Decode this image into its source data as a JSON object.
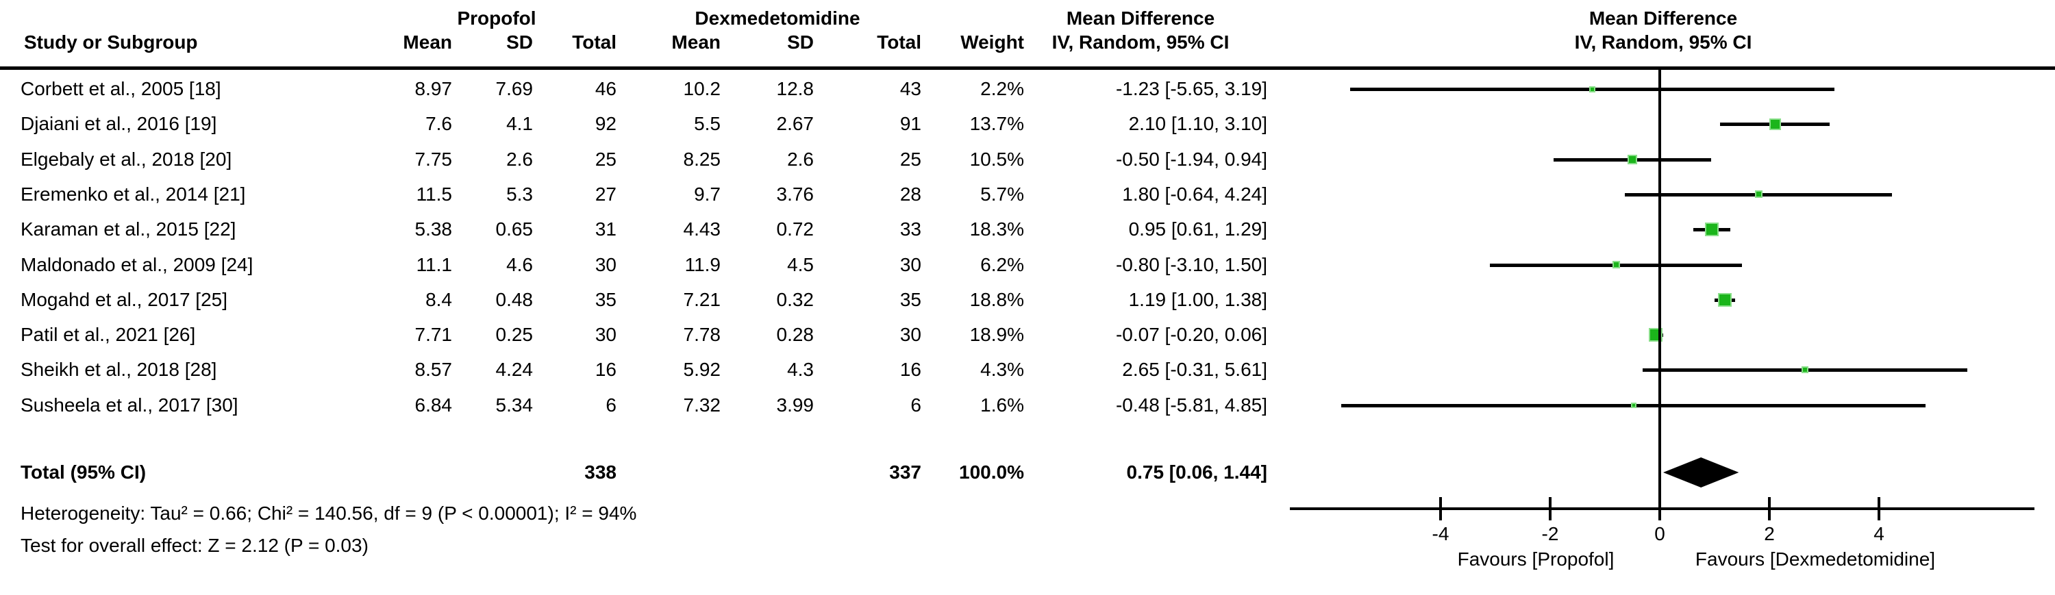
{
  "header": {
    "col_study": "Study or Subgroup",
    "group1": "Propofol",
    "group2": "Dexmedetomidine",
    "col_mean1": "Mean",
    "col_sd1": "SD",
    "col_total1": "Total",
    "col_mean2": "Mean",
    "col_sd2": "SD",
    "col_total2": "Total",
    "col_weight": "Weight",
    "effect_title": "Mean Difference",
    "effect_subtitle": "IV, Random, 95% CI",
    "plot_title": "Mean Difference",
    "plot_subtitle": "IV, Random, 95% CI"
  },
  "colors": {
    "square_fill": "#1BB51B",
    "square_border": "#8ADF8A",
    "ci_line": "#000000",
    "diamond": "#000000"
  },
  "chart_data": {
    "type": "forest",
    "effect_measure": "Mean Difference (IV, Random, 95% CI)",
    "x_axis": {
      "min": -6.75,
      "max": 6.84,
      "ticks": [
        -4,
        -2,
        0,
        2,
        4
      ],
      "favours_left": "Favours [Propofol]",
      "favours_right": "Favours [Dexmedetomidine]"
    },
    "studies": [
      {
        "label": "Corbett et al., 2005 [18]",
        "mean1": "8.97",
        "sd1": "7.69",
        "total1": "46",
        "mean2": "10.2",
        "sd2": "12.8",
        "total2": "43",
        "weight": "2.2%",
        "weight_value": 2.2,
        "ci_text": "-1.23 [-5.65, 3.19]",
        "md": -1.23,
        "lo": -5.65,
        "hi": 3.19
      },
      {
        "label": "Djaiani et al., 2016 [19]",
        "mean1": "7.6",
        "sd1": "4.1",
        "total1": "92",
        "mean2": "5.5",
        "sd2": "2.67",
        "total2": "91",
        "weight": "13.7%",
        "weight_value": 13.7,
        "ci_text": "2.10 [1.10, 3.10]",
        "md": 2.1,
        "lo": 1.1,
        "hi": 3.1
      },
      {
        "label": "Elgebaly et al., 2018 [20]",
        "mean1": "7.75",
        "sd1": "2.6",
        "total1": "25",
        "mean2": "8.25",
        "sd2": "2.6",
        "total2": "25",
        "weight": "10.5%",
        "weight_value": 10.5,
        "ci_text": "-0.50 [-1.94, 0.94]",
        "md": -0.5,
        "lo": -1.94,
        "hi": 0.94
      },
      {
        "label": "Eremenko et al., 2014 [21]",
        "mean1": "11.5",
        "sd1": "5.3",
        "total1": "27",
        "mean2": "9.7",
        "sd2": "3.76",
        "total2": "28",
        "weight": "5.7%",
        "weight_value": 5.7,
        "ci_text": "1.80 [-0.64, 4.24]",
        "md": 1.8,
        "lo": -0.64,
        "hi": 4.24
      },
      {
        "label": "Karaman et al., 2015 [22]",
        "mean1": "5.38",
        "sd1": "0.65",
        "total1": "31",
        "mean2": "4.43",
        "sd2": "0.72",
        "total2": "33",
        "weight": "18.3%",
        "weight_value": 18.3,
        "ci_text": "0.95 [0.61, 1.29]",
        "md": 0.95,
        "lo": 0.61,
        "hi": 1.29
      },
      {
        "label": "Maldonado et al., 2009 [24]",
        "mean1": "11.1",
        "sd1": "4.6",
        "total1": "30",
        "mean2": "11.9",
        "sd2": "4.5",
        "total2": "30",
        "weight": "6.2%",
        "weight_value": 6.2,
        "ci_text": "-0.80 [-3.10, 1.50]",
        "md": -0.8,
        "lo": -3.1,
        "hi": 1.5
      },
      {
        "label": "Mogahd et al., 2017 [25]",
        "mean1": "8.4",
        "sd1": "0.48",
        "total1": "35",
        "mean2": "7.21",
        "sd2": "0.32",
        "total2": "35",
        "weight": "18.8%",
        "weight_value": 18.8,
        "ci_text": "1.19 [1.00, 1.38]",
        "md": 1.19,
        "lo": 1.0,
        "hi": 1.38
      },
      {
        "label": "Patil et al., 2021 [26]",
        "mean1": "7.71",
        "sd1": "0.25",
        "total1": "30",
        "mean2": "7.78",
        "sd2": "0.28",
        "total2": "30",
        "weight": "18.9%",
        "weight_value": 18.9,
        "ci_text": "-0.07 [-0.20, 0.06]",
        "md": -0.07,
        "lo": -0.2,
        "hi": 0.06
      },
      {
        "label": "Sheikh et al., 2018 [28]",
        "mean1": "8.57",
        "sd1": "4.24",
        "total1": "16",
        "mean2": "5.92",
        "sd2": "4.3",
        "total2": "16",
        "weight": "4.3%",
        "weight_value": 4.3,
        "ci_text": "2.65 [-0.31, 5.61]",
        "md": 2.65,
        "lo": -0.31,
        "hi": 5.61
      },
      {
        "label": "Susheela et al., 2017 [30]",
        "mean1": "6.84",
        "sd1": "5.34",
        "total1": "6",
        "mean2": "7.32",
        "sd2": "3.99",
        "total2": "6",
        "weight": "1.6%",
        "weight_value": 1.6,
        "ci_text": "-0.48 [-5.81, 4.85]",
        "md": -0.48,
        "lo": -5.81,
        "hi": 4.85
      }
    ],
    "totals": {
      "label": "Total (95% CI)",
      "total1": "338",
      "total2": "337",
      "weight": "100.0%",
      "ci_text": "0.75 [0.06, 1.44]",
      "md": 0.75,
      "lo": 0.06,
      "hi": 1.44
    },
    "heterogeneity": "Heterogeneity: Tau² = 0.66; Chi² = 140.56, df = 9 (P < 0.00001); I² = 94%",
    "overall_effect": "Test for overall effect: Z = 2.12 (P = 0.03)"
  }
}
